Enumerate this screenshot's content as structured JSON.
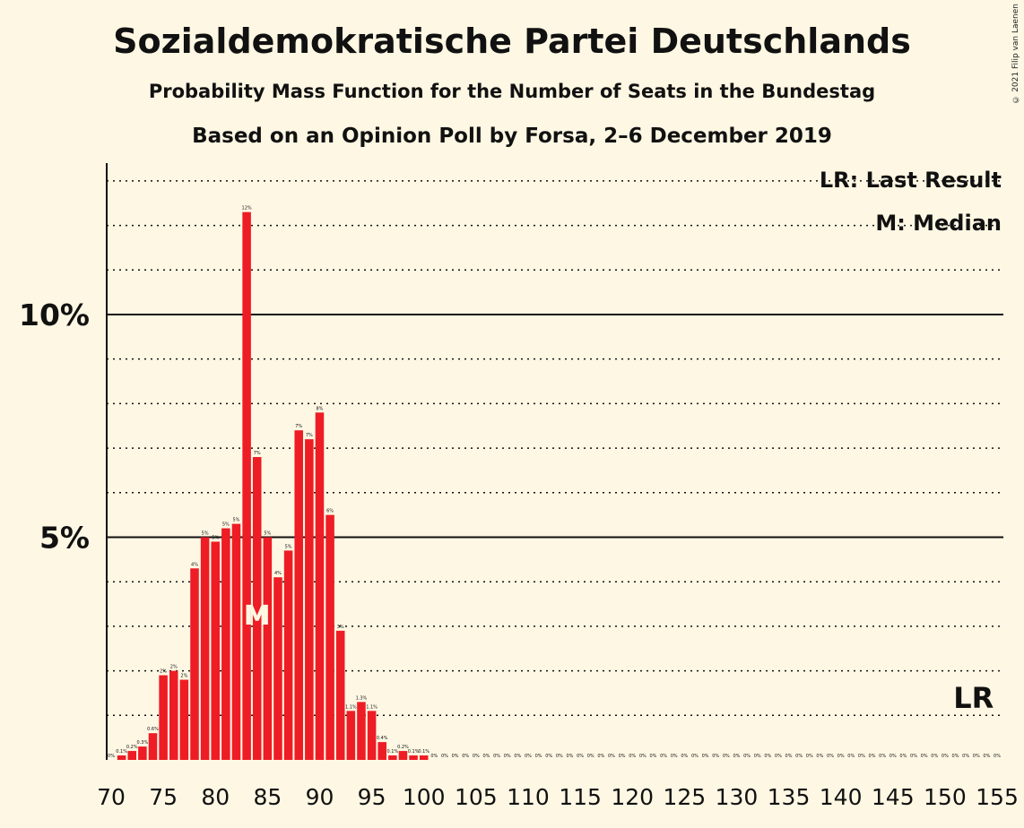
{
  "title": "Sozialdemokratische Partei Deutschlands",
  "subtitle": "Probability Mass Function for the Number of Seats in the Bundestag",
  "subtitle2": "Based on an Opinion Poll by Forsa, 2–6 December 2019",
  "copyright": "© 2021 Filip van Laenen",
  "legend": {
    "lr": "LR: Last Result",
    "m": "M: Median"
  },
  "median_marker": "M",
  "last_result_marker": "LR",
  "colors": {
    "bar": "#ee1c25",
    "background": "#fdf7e3",
    "text": "#111111"
  },
  "chart_data": {
    "type": "bar",
    "x": [
      70,
      71,
      72,
      73,
      74,
      75,
      76,
      77,
      78,
      79,
      80,
      81,
      82,
      83,
      84,
      85,
      86,
      87,
      88,
      89,
      90,
      91,
      92,
      93,
      94,
      95,
      96,
      97,
      98,
      99,
      100,
      101,
      102,
      103,
      104,
      105,
      106,
      107,
      108,
      109,
      110,
      111,
      112,
      113,
      114,
      115,
      116,
      117,
      118,
      119,
      120,
      121,
      122,
      123,
      124,
      125,
      126,
      127,
      128,
      129,
      130,
      131,
      132,
      133,
      134,
      135,
      136,
      137,
      138,
      139,
      140,
      141,
      142,
      143,
      144,
      145,
      146,
      147,
      148,
      149,
      150,
      151,
      152,
      153,
      154,
      155
    ],
    "values": [
      0,
      0.1,
      0.2,
      0.3,
      0.6,
      1.9,
      2.0,
      1.8,
      4.3,
      5.0,
      4.9,
      5.2,
      5.3,
      12.3,
      6.8,
      5.0,
      4.1,
      4.7,
      7.4,
      7.2,
      7.8,
      5.5,
      2.9,
      1.1,
      1.3,
      1.1,
      0.4,
      0.1,
      0.2,
      0.1,
      0.1,
      0,
      0,
      0,
      0,
      0,
      0,
      0,
      0,
      0,
      0,
      0,
      0,
      0,
      0,
      0,
      0,
      0,
      0,
      0,
      0,
      0,
      0,
      0,
      0,
      0,
      0,
      0,
      0,
      0,
      0,
      0,
      0,
      0,
      0,
      0,
      0,
      0,
      0,
      0,
      0,
      0,
      0,
      0,
      0,
      0,
      0,
      0,
      0,
      0,
      0,
      0,
      0,
      0,
      0,
      0
    ],
    "labels": [
      "0%",
      "0.1%",
      "0.2%",
      "0.3%",
      "0.6%",
      "2%",
      "2%",
      "2%",
      "4%",
      "5%",
      "5%",
      "5%",
      "5%",
      "12%",
      "7%",
      "5%",
      "4%",
      "5%",
      "7%",
      "7%",
      "8%",
      "6%",
      "3%",
      "1.1%",
      "1.3%",
      "1.1%",
      "0.4%",
      "0.1%",
      "0.2%",
      "0.1%",
      "0.1%",
      "0%",
      "0%",
      "0%",
      "0%",
      "0%",
      "0%",
      "0%",
      "0%",
      "0%",
      "0%",
      "0%",
      "0%",
      "0%",
      "0%",
      "0%",
      "0%",
      "0%",
      "0%",
      "0%",
      "0%",
      "0%",
      "0%",
      "0%",
      "0%",
      "0%",
      "0%",
      "0%",
      "0%",
      "0%",
      "0%",
      "0%",
      "0%",
      "0%",
      "0%",
      "0%",
      "0%",
      "0%",
      "0%",
      "0%",
      "0%",
      "0%",
      "0%",
      "0%",
      "0%",
      "0%",
      "0%",
      "0%",
      "0%",
      "0%",
      "0%",
      "0%",
      "0%",
      "0%",
      "0%",
      "0%"
    ],
    "x_ticks": [
      70,
      75,
      80,
      85,
      90,
      95,
      100,
      105,
      110,
      115,
      120,
      125,
      130,
      135,
      140,
      145,
      150,
      155
    ],
    "y_ticks": [
      {
        "value": 5,
        "label": "5%"
      },
      {
        "value": 10,
        "label": "10%"
      }
    ],
    "ylim": [
      0,
      13.4
    ],
    "median": 84,
    "last_result": 153,
    "grid": true
  }
}
